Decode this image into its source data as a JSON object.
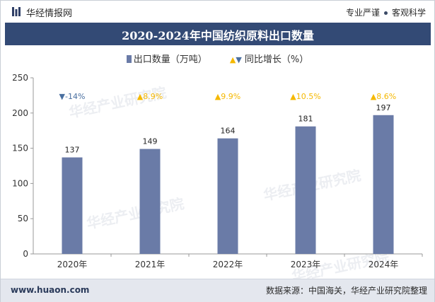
{
  "header": {
    "brand": "华经情报网",
    "tagline_left": "专业严谨",
    "tagline_right": "客观科学"
  },
  "title": "2020-2024年中国纺织原料出口数量",
  "legend": {
    "bar_label": "出口数量（万吨）",
    "growth_label": "同比增长（%）"
  },
  "watermark": "华经产业研究院",
  "footer": {
    "site": "www.huaon.com",
    "source": "数据来源：中国海关，华经产业研究院整理"
  },
  "colors": {
    "bar": "#6a7ba7",
    "growth_up": "#f5b800",
    "growth_down": "#4a6fa0",
    "title_bg": "#334a75"
  },
  "chart_data": {
    "type": "bar",
    "categories": [
      "2020年",
      "2021年",
      "2022年",
      "2023年",
      "2024年"
    ],
    "series": [
      {
        "name": "出口数量（万吨）",
        "values": [
          137,
          149,
          164,
          181,
          197
        ]
      }
    ],
    "growth": {
      "name": "同比增长（%）",
      "values": [
        -14,
        8.9,
        9.9,
        10.5,
        8.6
      ],
      "labels": [
        "-14%",
        "8.9%",
        "9.9%",
        "10.5%",
        "8.6%"
      ]
    },
    "yticks": [
      0,
      50,
      100,
      150,
      200,
      250
    ],
    "ylim": [
      0,
      250
    ],
    "grid": false,
    "legend_position": "top"
  }
}
